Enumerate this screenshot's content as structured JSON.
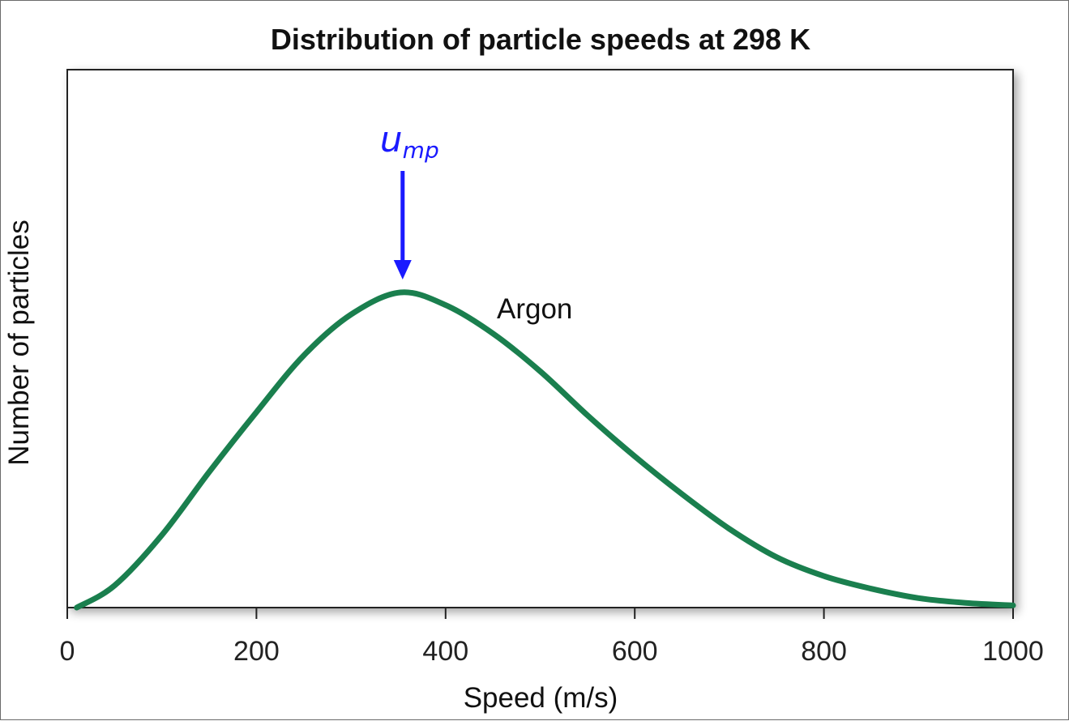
{
  "chart_data": {
    "type": "line",
    "title": "Distribution of particle speeds at 298 K",
    "xlabel": "Speed (m/s)",
    "ylabel": "Number of particles",
    "xlim": [
      0,
      1000
    ],
    "ylim": [
      0,
      1
    ],
    "x_ticks": [
      0,
      200,
      400,
      600,
      800,
      1000
    ],
    "x_tick_labels": [
      "0",
      "200",
      "400",
      "600",
      "800",
      "1000"
    ],
    "y_ticks_shown": false,
    "grid": false,
    "series": [
      {
        "name": "Argon",
        "color": "#1a7f4e",
        "x": [
          10,
          50,
          100,
          150,
          200,
          250,
          300,
          352,
          400,
          450,
          500,
          550,
          600,
          650,
          700,
          750,
          800,
          850,
          900,
          950,
          1000
        ],
        "y": [
          0.0,
          0.07,
          0.23,
          0.43,
          0.62,
          0.8,
          0.93,
          1.0,
          0.96,
          0.87,
          0.75,
          0.61,
          0.48,
          0.36,
          0.25,
          0.16,
          0.1,
          0.06,
          0.03,
          0.015,
          0.007
        ]
      }
    ],
    "annotations": [
      {
        "text_main": "u",
        "text_sub": "mp",
        "x": 352,
        "color": "#1a1aff",
        "arrow": "down"
      }
    ]
  }
}
